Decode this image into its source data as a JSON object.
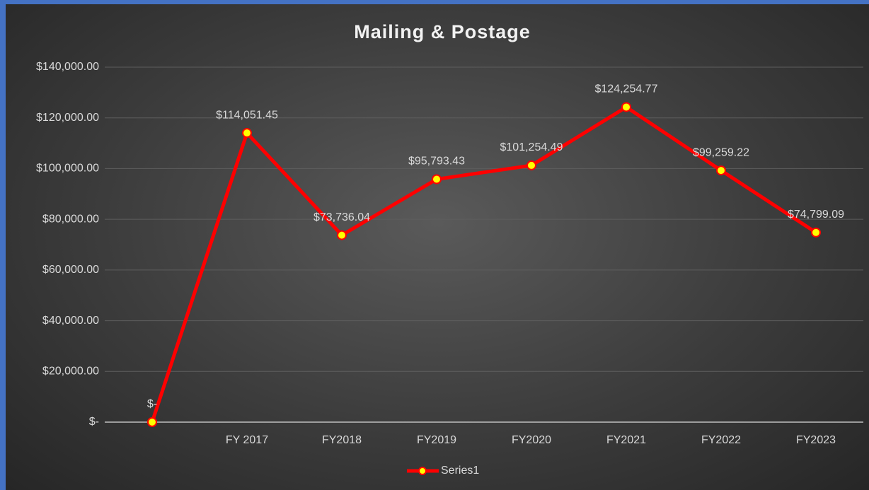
{
  "chart_data": {
    "type": "line",
    "title": "Mailing & Postage",
    "categories": [
      null,
      "FY 2017",
      "FY2018",
      "FY2019",
      "FY2020",
      "FY2021",
      "FY2022",
      "FY2023"
    ],
    "series": [
      {
        "name": "Series1",
        "color": "#ff0000",
        "marker_color": "#ffff00",
        "values": [
          0,
          114051.45,
          73736.04,
          95793.43,
          101254.49,
          124254.77,
          99259.22,
          74799.09
        ],
        "value_labels": [
          "$-",
          "$114,051.45",
          "$73,736.04",
          "$95,793.43",
          "$101,254.49",
          "$124,254.77",
          "$99,259.22",
          "$74,799.09"
        ]
      }
    ],
    "ylim": [
      0,
      140000
    ],
    "yticks": [
      {
        "value": 0,
        "label": "$-"
      },
      {
        "value": 20000,
        "label": "$20,000.00"
      },
      {
        "value": 40000,
        "label": "$40,000.00"
      },
      {
        "value": 60000,
        "label": "$60,000.00"
      },
      {
        "value": 80000,
        "label": "$80,000.00"
      },
      {
        "value": 100000,
        "label": "$100,000.00"
      },
      {
        "value": 120000,
        "label": "$120,000.00"
      },
      {
        "value": 140000,
        "label": "$140,000.00"
      }
    ],
    "grid": true,
    "legend": "bottom"
  }
}
